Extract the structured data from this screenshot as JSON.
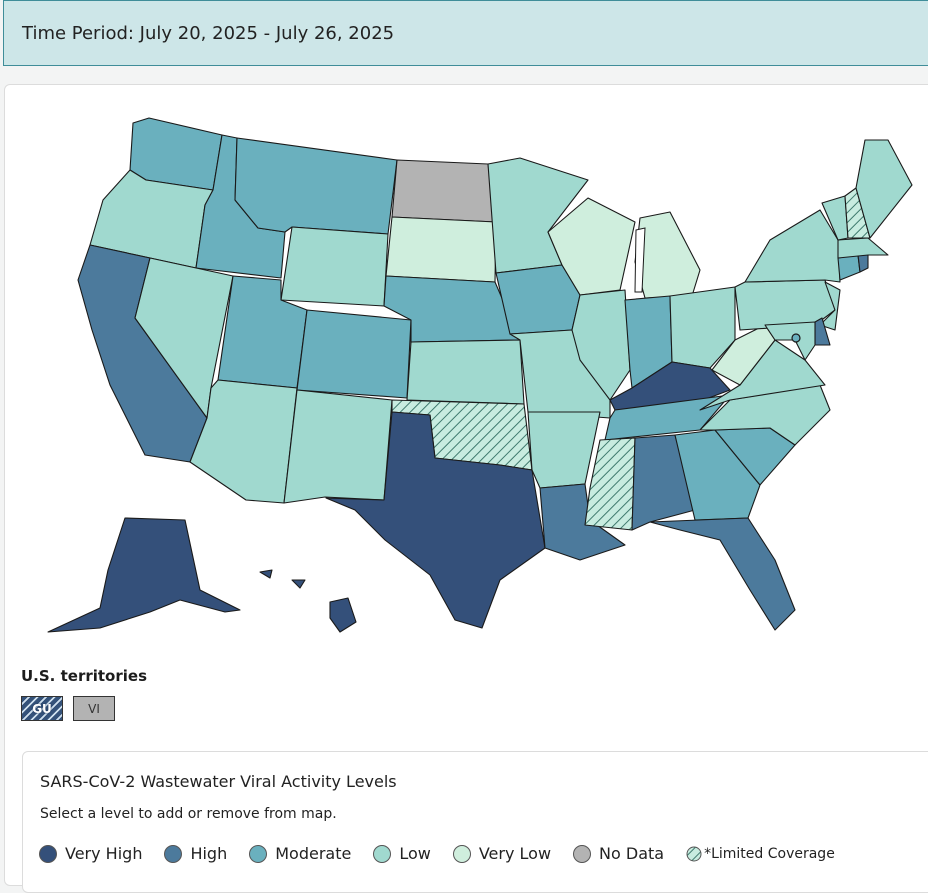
{
  "header": {
    "time_period": "Time Period: July 20, 2025 - July 26, 2025"
  },
  "colors": {
    "very_high": "#34507a",
    "high": "#4c7a9c",
    "moderate": "#6ab0be",
    "low": "#a0d9cf",
    "very_low": "#cfeedd",
    "no_data": "#b3b3b3"
  },
  "map": {
    "states": [
      {
        "id": "WA",
        "level": "moderate"
      },
      {
        "id": "OR",
        "level": "low"
      },
      {
        "id": "CA",
        "level": "high"
      },
      {
        "id": "ID",
        "level": "moderate"
      },
      {
        "id": "NV",
        "level": "low"
      },
      {
        "id": "MT",
        "level": "moderate"
      },
      {
        "id": "WY",
        "level": "low"
      },
      {
        "id": "UT",
        "level": "moderate"
      },
      {
        "id": "AZ",
        "level": "low"
      },
      {
        "id": "CO",
        "level": "moderate"
      },
      {
        "id": "NM",
        "level": "low"
      },
      {
        "id": "ND",
        "level": "no_data"
      },
      {
        "id": "SD",
        "level": "very_low"
      },
      {
        "id": "NE",
        "level": "moderate"
      },
      {
        "id": "KS",
        "level": "low"
      },
      {
        "id": "OK",
        "level": "low",
        "limited_coverage": true
      },
      {
        "id": "TX",
        "level": "very_high"
      },
      {
        "id": "MN",
        "level": "low"
      },
      {
        "id": "IA",
        "level": "moderate"
      },
      {
        "id": "MO",
        "level": "low"
      },
      {
        "id": "AR",
        "level": "low"
      },
      {
        "id": "LA",
        "level": "high"
      },
      {
        "id": "WI",
        "level": "very_low"
      },
      {
        "id": "MI",
        "level": "very_low"
      },
      {
        "id": "IL",
        "level": "low"
      },
      {
        "id": "IN",
        "level": "moderate"
      },
      {
        "id": "OH",
        "level": "low"
      },
      {
        "id": "KY",
        "level": "very_high"
      },
      {
        "id": "TN",
        "level": "moderate"
      },
      {
        "id": "MS",
        "level": "low",
        "limited_coverage": true
      },
      {
        "id": "AL",
        "level": "high"
      },
      {
        "id": "GA",
        "level": "moderate"
      },
      {
        "id": "FL",
        "level": "high"
      },
      {
        "id": "SC",
        "level": "moderate"
      },
      {
        "id": "NC",
        "level": "low"
      },
      {
        "id": "VA",
        "level": "low"
      },
      {
        "id": "WV",
        "level": "very_low"
      },
      {
        "id": "PA",
        "level": "low"
      },
      {
        "id": "NY",
        "level": "low"
      },
      {
        "id": "NJ",
        "level": "low"
      },
      {
        "id": "DE",
        "level": "high"
      },
      {
        "id": "MD",
        "level": "low"
      },
      {
        "id": "DC",
        "level": "moderate"
      },
      {
        "id": "CT",
        "level": "moderate"
      },
      {
        "id": "RI",
        "level": "high"
      },
      {
        "id": "MA",
        "level": "low"
      },
      {
        "id": "VT",
        "level": "low"
      },
      {
        "id": "NH",
        "level": "low",
        "limited_coverage": true
      },
      {
        "id": "ME",
        "level": "low"
      },
      {
        "id": "AK",
        "level": "very_high"
      },
      {
        "id": "HI",
        "level": "very_high"
      }
    ]
  },
  "territories": {
    "title": "U.S. territories",
    "items": [
      {
        "label": "GU",
        "level": "very_high",
        "limited_coverage": true
      },
      {
        "label": "VI",
        "level": "no_data"
      }
    ]
  },
  "legend": {
    "title": "SARS-CoV-2 Wastewater Viral Activity Levels",
    "subtitle": "Select a level to add or remove from map.",
    "items": [
      {
        "key": "very_high",
        "label": "Very High"
      },
      {
        "key": "high",
        "label": "High"
      },
      {
        "key": "moderate",
        "label": "Moderate"
      },
      {
        "key": "low",
        "label": "Low"
      },
      {
        "key": "very_low",
        "label": "Very Low"
      },
      {
        "key": "no_data",
        "label": "No Data"
      }
    ],
    "limited_coverage_label": "*Limited Coverage"
  }
}
